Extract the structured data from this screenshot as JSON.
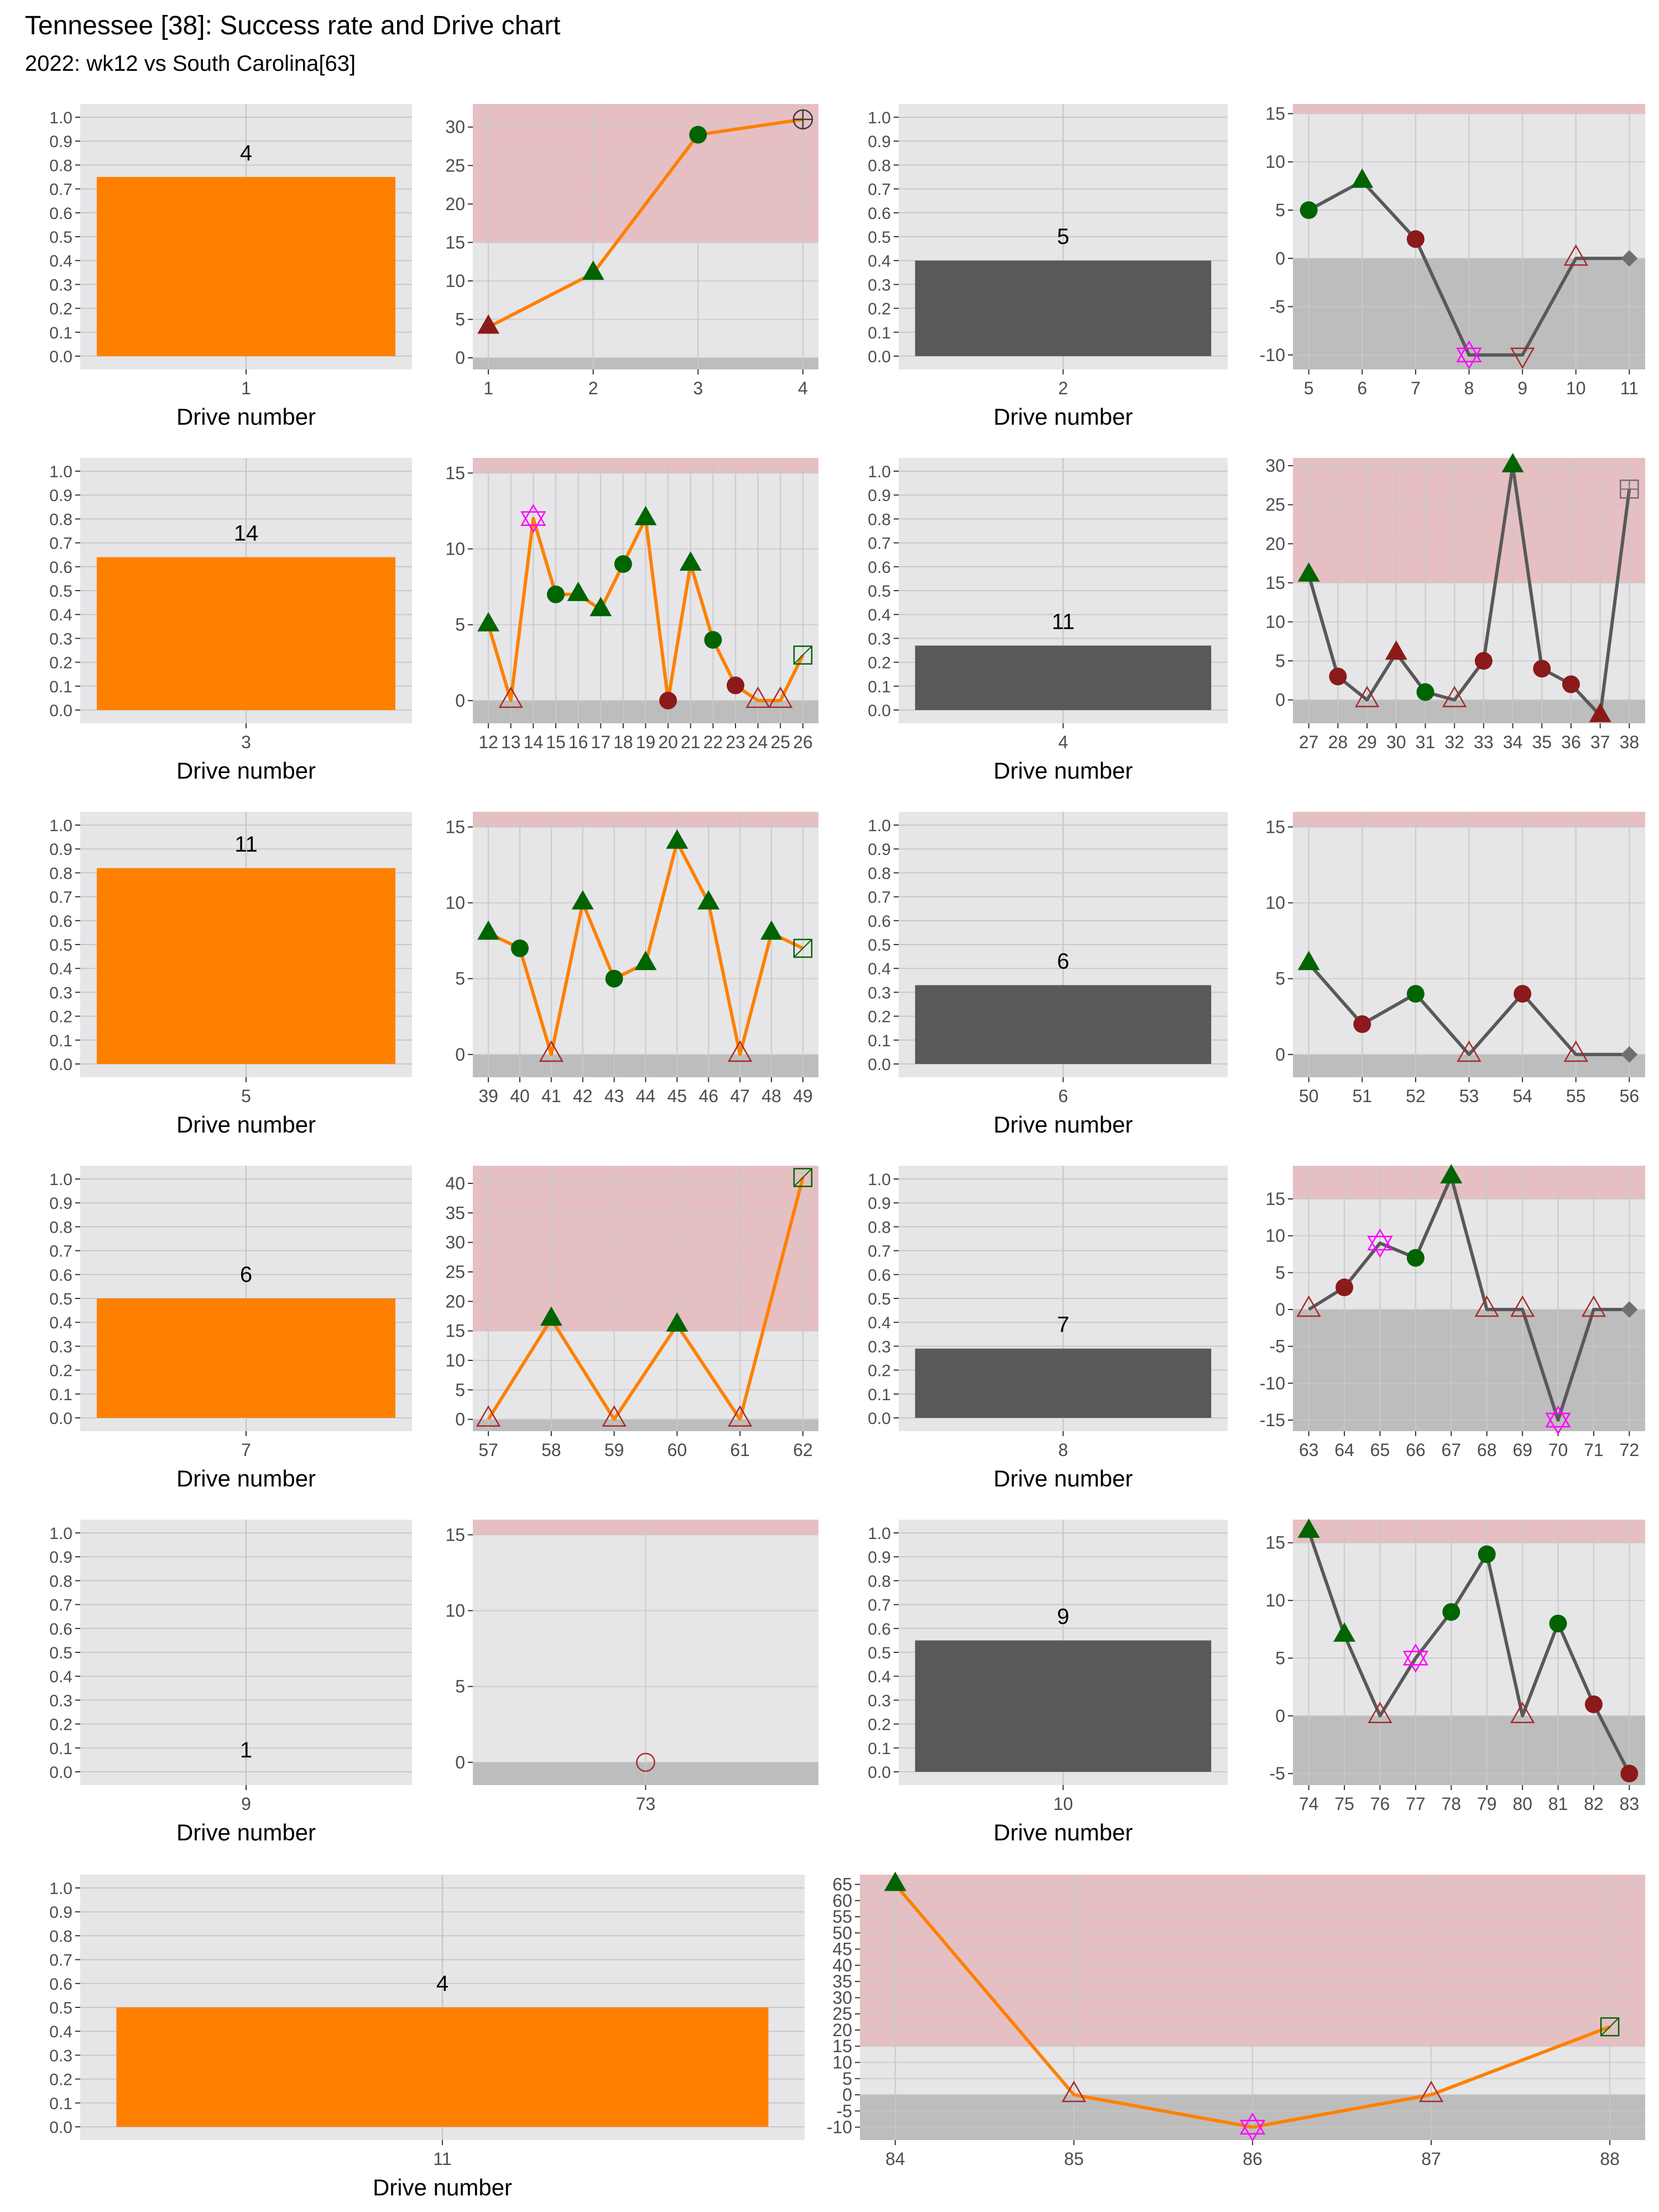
{
  "title": "Tennessee [38]: Success rate and Drive chart",
  "subtitle": "2022: wk12 vs South Carolina[63]",
  "colors": {
    "orange": "#FF8000",
    "dark_gray": "#58595B",
    "line_gray": "#595959",
    "panel_bg": "#E6E6E8",
    "grid": "#C8C8C8",
    "red_band": "#E6BFC3",
    "gray_band": "#BDBDBD",
    "green": "#006400",
    "dark_red": "#8B1A1A",
    "magenta": "#FF00FF",
    "open_red": "#A52A2A"
  },
  "chart_data": [
    {
      "type": "bar",
      "panel": "success-rate",
      "drive": "1",
      "value": 0.75,
      "label": "4",
      "bar_color": "orange",
      "xlabel": "Drive number",
      "ylim": [
        0,
        1
      ]
    },
    {
      "type": "line",
      "panel": "drive-chart",
      "drive": "1",
      "line_color": "orange",
      "x": [
        1,
        2,
        3,
        4
      ],
      "y": [
        4,
        11,
        29,
        31
      ],
      "markers": [
        "tri_red",
        "tri_green",
        "circle_green",
        "circle_open_plus"
      ],
      "ylim": [
        -1.5,
        33
      ],
      "ticks": [
        0,
        5,
        10,
        15,
        20,
        25,
        30
      ]
    },
    {
      "type": "bar",
      "panel": "success-rate",
      "drive": "2",
      "value": 0.4,
      "label": "5",
      "bar_color": "dark_gray",
      "xlabel": "Drive number",
      "ylim": [
        0,
        1
      ]
    },
    {
      "type": "line",
      "panel": "drive-chart",
      "drive": "2",
      "line_color": "gray",
      "x": [
        5,
        6,
        7,
        8,
        9,
        10,
        11
      ],
      "y": [
        5,
        8,
        2,
        -10,
        -10,
        0,
        0
      ],
      "markers": [
        "circle_green",
        "tri_green",
        "circle_red",
        "star_magenta",
        "tri_down_open",
        "tri_open_red",
        "diamond_gray"
      ],
      "ylim": [
        -11.5,
        16
      ],
      "ticks": [
        -10,
        -5,
        0,
        5,
        10,
        15
      ]
    },
    {
      "type": "bar",
      "panel": "success-rate",
      "drive": "3",
      "value": 0.64,
      "label": "14",
      "bar_color": "orange",
      "xlabel": "Drive number",
      "ylim": [
        0,
        1
      ]
    },
    {
      "type": "line",
      "panel": "drive-chart",
      "drive": "3",
      "line_color": "orange",
      "x": [
        12,
        13,
        14,
        15,
        16,
        17,
        18,
        19,
        20,
        21,
        22,
        23,
        24,
        25,
        26
      ],
      "y": [
        5,
        0,
        12,
        7,
        7,
        6,
        9,
        12,
        0,
        9,
        4,
        1,
        0,
        0,
        3
      ],
      "markers": [
        "tri_green",
        "tri_open_red",
        "star_magenta",
        "circle_green",
        "tri_green",
        "tri_green",
        "circle_green",
        "tri_green",
        "circle_red",
        "tri_green",
        "circle_green",
        "circle_red",
        "tri_open_red",
        "tri_open_red",
        "square_open_green"
      ],
      "ylim": [
        -1.5,
        16
      ],
      "ticks": [
        0,
        5,
        10,
        15
      ]
    },
    {
      "type": "bar",
      "panel": "success-rate",
      "drive": "4",
      "value": 0.27,
      "label": "11",
      "bar_color": "dark_gray",
      "xlabel": "Drive number",
      "ylim": [
        0,
        1
      ]
    },
    {
      "type": "line",
      "panel": "drive-chart",
      "drive": "4",
      "line_color": "gray",
      "x": [
        27,
        28,
        29,
        30,
        31,
        32,
        33,
        34,
        35,
        36,
        37,
        38
      ],
      "y": [
        16,
        3,
        0,
        6,
        1,
        0,
        5,
        30,
        4,
        2,
        -2,
        27
      ],
      "markers": [
        "tri_green",
        "circle_red",
        "tri_open_red",
        "tri_red",
        "circle_green",
        "tri_open_red",
        "circle_red",
        "tri_green",
        "circle_red",
        "circle_red",
        "tri_red",
        "square_open_plus"
      ],
      "ylim": [
        -3,
        31
      ],
      "ticks": [
        0,
        5,
        10,
        15,
        20,
        25,
        30
      ]
    },
    {
      "type": "bar",
      "panel": "success-rate",
      "drive": "5",
      "value": 0.82,
      "label": "11",
      "bar_color": "orange",
      "xlabel": "Drive number",
      "ylim": [
        0,
        1
      ]
    },
    {
      "type": "line",
      "panel": "drive-chart",
      "drive": "5",
      "line_color": "orange",
      "x": [
        39,
        40,
        41,
        42,
        43,
        44,
        45,
        46,
        47,
        48,
        49
      ],
      "y": [
        8,
        7,
        0,
        10,
        5,
        6,
        14,
        10,
        0,
        8,
        7
      ],
      "markers": [
        "tri_green",
        "circle_green",
        "tri_open_red",
        "tri_green",
        "circle_green",
        "tri_green",
        "tri_green",
        "tri_green",
        "tri_open_red",
        "tri_green",
        "square_open_green"
      ],
      "ylim": [
        -1.5,
        16
      ],
      "ticks": [
        0,
        5,
        10,
        15
      ]
    },
    {
      "type": "bar",
      "panel": "success-rate",
      "drive": "6",
      "value": 0.33,
      "label": "6",
      "bar_color": "dark_gray",
      "xlabel": "Drive number",
      "ylim": [
        0,
        1
      ]
    },
    {
      "type": "line",
      "panel": "drive-chart",
      "drive": "6",
      "line_color": "gray",
      "x": [
        50,
        51,
        52,
        53,
        54,
        55,
        56
      ],
      "y": [
        6,
        2,
        4,
        0,
        4,
        0,
        0
      ],
      "markers": [
        "tri_green",
        "circle_red",
        "circle_green",
        "tri_open_red",
        "circle_red",
        "tri_open_red",
        "diamond_gray"
      ],
      "ylim": [
        -1.5,
        16
      ],
      "ticks": [
        0,
        5,
        10,
        15
      ]
    },
    {
      "type": "bar",
      "panel": "success-rate",
      "drive": "7",
      "value": 0.5,
      "label": "6",
      "bar_color": "orange",
      "xlabel": "Drive number",
      "ylim": [
        0,
        1
      ]
    },
    {
      "type": "line",
      "panel": "drive-chart",
      "drive": "7",
      "line_color": "orange",
      "x": [
        57,
        58,
        59,
        60,
        61,
        62
      ],
      "y": [
        0,
        17,
        0,
        16,
        0,
        41
      ],
      "markers": [
        "tri_open_red",
        "tri_green",
        "tri_open_red",
        "tri_green",
        "tri_open_red",
        "square_open_green"
      ],
      "ylim": [
        -2,
        43
      ],
      "ticks": [
        0,
        5,
        10,
        15,
        20,
        25,
        30,
        35,
        40
      ]
    },
    {
      "type": "bar",
      "panel": "success-rate",
      "drive": "8",
      "value": 0.29,
      "label": "7",
      "bar_color": "dark_gray",
      "xlabel": "Drive number",
      "ylim": [
        0,
        1
      ]
    },
    {
      "type": "line",
      "panel": "drive-chart",
      "drive": "8",
      "line_color": "gray",
      "x": [
        63,
        64,
        65,
        66,
        67,
        68,
        69,
        70,
        71,
        72
      ],
      "y": [
        0,
        3,
        9,
        7,
        18,
        0,
        0,
        -15,
        0,
        0
      ],
      "markers": [
        "tri_open_red",
        "circle_red",
        "star_magenta",
        "circle_green",
        "tri_green",
        "tri_open_red",
        "tri_open_red",
        "star_magenta",
        "tri_open_red",
        "diamond_gray"
      ],
      "ylim": [
        -16.5,
        19.5
      ],
      "ticks": [
        -15,
        -10,
        -5,
        0,
        5,
        10,
        15
      ]
    },
    {
      "type": "bar",
      "panel": "success-rate",
      "drive": "9",
      "value": 0.0,
      "label": "1",
      "bar_color": "orange",
      "xlabel": "Drive number",
      "ylim": [
        0,
        1
      ]
    },
    {
      "type": "line",
      "panel": "drive-chart",
      "drive": "9",
      "line_color": "orange",
      "x": [
        73
      ],
      "y": [
        0
      ],
      "markers": [
        "circle_open_red"
      ],
      "ylim": [
        -1.5,
        16
      ],
      "ticks": [
        0,
        5,
        10,
        15
      ]
    },
    {
      "type": "bar",
      "panel": "success-rate",
      "drive": "10",
      "value": 0.55,
      "label": "9",
      "bar_color": "dark_gray",
      "xlabel": "Drive number",
      "ylim": [
        0,
        1
      ]
    },
    {
      "type": "line",
      "panel": "drive-chart",
      "drive": "10",
      "line_color": "gray",
      "x": [
        74,
        75,
        76,
        77,
        78,
        79,
        80,
        81,
        82,
        83
      ],
      "y": [
        16,
        7,
        0,
        5,
        9,
        14,
        0,
        8,
        1,
        -5
      ],
      "markers": [
        "tri_green",
        "tri_green",
        "tri_open_red",
        "star_magenta",
        "circle_green",
        "circle_green",
        "tri_open_red",
        "circle_green",
        "circle_red",
        "circle_red"
      ],
      "ylim": [
        -6,
        17
      ],
      "ticks": [
        -5,
        0,
        5,
        10,
        15
      ]
    },
    {
      "type": "bar",
      "panel": "success-rate",
      "drive": "11",
      "value": 0.5,
      "label": "4",
      "bar_color": "orange",
      "xlabel": "Drive number",
      "ylim": [
        0,
        1
      ]
    },
    {
      "type": "line",
      "panel": "drive-chart",
      "drive": "11",
      "line_color": "orange",
      "x": [
        84,
        85,
        86,
        87,
        88
      ],
      "y": [
        65,
        0,
        -10,
        0,
        21
      ],
      "markers": [
        "tri_green",
        "tri_open_red",
        "star_magenta",
        "tri_open_red",
        "square_open_green"
      ],
      "ylim": [
        -14,
        68
      ],
      "ticks": [
        -10,
        -5,
        0,
        5,
        10,
        15,
        20,
        25,
        30,
        35,
        40,
        45,
        50,
        55,
        60,
        65
      ]
    }
  ]
}
